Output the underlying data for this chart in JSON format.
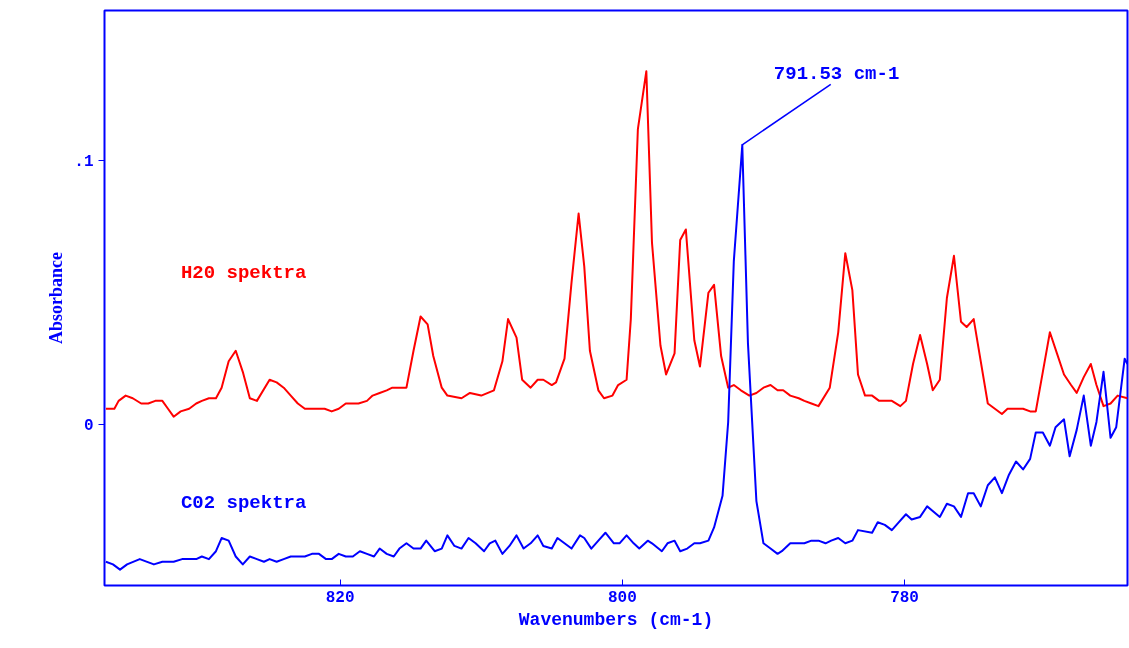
{
  "chart_data": {
    "type": "line",
    "xlabel": "Wavenumbers (cm-1)",
    "ylabel": "Absorbance",
    "xlim": [
      836.7,
      764.2
    ],
    "ylim": [
      -0.061,
      0.157
    ],
    "xticks": [
      820,
      800,
      780
    ],
    "yticks": [
      {
        "value": 0.1,
        "label": ".1"
      },
      0
    ],
    "grid": false,
    "marker": "none",
    "line_style": "solid",
    "annotations": [
      {
        "text": "791.53 cm-1",
        "x": 791.53,
        "y": 0.106
      }
    ],
    "series": [
      {
        "name": "H20 spektra",
        "color": "#ff0000",
        "x": [
          836.6,
          836.0,
          835.7,
          835.2,
          834.7,
          834.1,
          833.6,
          833.1,
          832.6,
          832.2,
          831.8,
          831.3,
          830.7,
          830.2,
          829.8,
          829.3,
          828.8,
          828.4,
          827.9,
          827.4,
          826.9,
          826.4,
          825.9,
          825.0,
          824.5,
          824.0,
          823.5,
          823.0,
          822.5,
          822.0,
          821.6,
          821.1,
          820.6,
          820.1,
          819.6,
          819.2,
          818.7,
          818.1,
          817.7,
          817.2,
          816.7,
          816.3,
          815.3,
          814.8,
          814.3,
          813.8,
          813.4,
          812.8,
          812.4,
          811.4,
          810.8,
          810.0,
          809.1,
          808.5,
          808.1,
          807.5,
          807.1,
          806.5,
          806.0,
          805.6,
          805.0,
          804.7,
          804.1,
          803.6,
          803.1,
          802.7,
          802.3,
          801.7,
          801.3,
          800.7,
          800.3,
          799.7,
          799.4,
          798.9,
          798.3,
          797.9,
          797.3,
          796.9,
          796.3,
          795.9,
          795.5,
          794.9,
          794.5,
          793.9,
          793.5,
          793.0,
          792.5,
          792.1,
          791.6,
          791.0,
          790.5,
          790.0,
          789.5,
          789.0,
          788.6,
          788.1,
          787.5,
          787.1,
          786.6,
          786.1,
          785.3,
          784.7,
          784.2,
          783.7,
          783.3,
          782.8,
          782.3,
          781.8,
          780.9,
          780.3,
          779.9,
          779.4,
          778.9,
          778.4,
          778.0,
          777.5,
          777.0,
          776.5,
          776.0,
          775.6,
          775.1,
          774.6,
          774.1,
          773.6,
          773.1,
          772.7,
          772.1,
          771.6,
          771.1,
          770.7,
          770.2,
          769.7,
          769.2,
          768.7,
          768.2,
          767.8,
          767.3,
          766.8,
          766.4,
          765.9,
          765.4,
          764.9,
          764.2
        ],
        "values": [
          0.006,
          0.006,
          0.009,
          0.011,
          0.01,
          0.008,
          0.008,
          0.009,
          0.009,
          0.006,
          0.003,
          0.005,
          0.006,
          0.008,
          0.009,
          0.01,
          0.01,
          0.014,
          0.024,
          0.028,
          0.02,
          0.01,
          0.009,
          0.017,
          0.016,
          0.014,
          0.011,
          0.008,
          0.006,
          0.006,
          0.006,
          0.006,
          0.005,
          0.006,
          0.008,
          0.008,
          0.008,
          0.009,
          0.011,
          0.012,
          0.013,
          0.014,
          0.014,
          0.028,
          0.041,
          0.038,
          0.026,
          0.014,
          0.011,
          0.01,
          0.012,
          0.011,
          0.013,
          0.024,
          0.04,
          0.033,
          0.017,
          0.014,
          0.017,
          0.017,
          0.015,
          0.016,
          0.025,
          0.054,
          0.08,
          0.06,
          0.028,
          0.013,
          0.01,
          0.011,
          0.015,
          0.017,
          0.04,
          0.112,
          0.134,
          0.069,
          0.03,
          0.019,
          0.027,
          0.07,
          0.074,
          0.032,
          0.022,
          0.05,
          0.053,
          0.026,
          0.014,
          0.015,
          0.013,
          0.011,
          0.012,
          0.014,
          0.015,
          0.013,
          0.013,
          0.011,
          0.01,
          0.009,
          0.008,
          0.007,
          0.014,
          0.035,
          0.065,
          0.051,
          0.019,
          0.011,
          0.011,
          0.009,
          0.009,
          0.007,
          0.009,
          0.023,
          0.034,
          0.023,
          0.013,
          0.017,
          0.048,
          0.064,
          0.039,
          0.037,
          0.04,
          0.024,
          0.008,
          0.006,
          0.004,
          0.006,
          0.006,
          0.006,
          0.005,
          0.005,
          0.02,
          0.035,
          0.027,
          0.019,
          0.015,
          0.012,
          0.018,
          0.023,
          0.015,
          0.007,
          0.008,
          0.011,
          0.01
        ]
      },
      {
        "name": "C02 spektra",
        "color": "#0000ff",
        "x": [
          836.6,
          836.1,
          835.6,
          835.1,
          834.2,
          833.2,
          832.6,
          831.8,
          831.2,
          830.2,
          829.8,
          829.3,
          828.8,
          828.4,
          827.9,
          827.4,
          826.9,
          826.4,
          825.9,
          825.4,
          825.0,
          824.5,
          824.0,
          823.5,
          823.0,
          822.5,
          822.0,
          821.5,
          821.0,
          820.6,
          820.1,
          819.6,
          819.1,
          818.6,
          818.1,
          817.6,
          817.2,
          816.7,
          816.2,
          815.8,
          815.3,
          814.8,
          814.3,
          813.9,
          813.3,
          812.8,
          812.4,
          811.9,
          811.4,
          810.9,
          810.4,
          809.8,
          809.4,
          809.0,
          808.5,
          808.0,
          807.5,
          807.0,
          806.5,
          806.0,
          805.6,
          805.0,
          804.6,
          804.1,
          803.6,
          803.0,
          802.7,
          802.2,
          801.7,
          801.2,
          800.6,
          800.2,
          799.7,
          799.2,
          798.8,
          798.2,
          797.9,
          797.2,
          796.8,
          796.3,
          795.9,
          795.4,
          794.9,
          794.5,
          793.9,
          793.5,
          792.9,
          792.5,
          792.1,
          791.5,
          791.1,
          790.5,
          790.0,
          789.5,
          789.0,
          788.7,
          788.1,
          787.6,
          787.1,
          786.6,
          786.1,
          785.6,
          785.2,
          784.7,
          784.2,
          783.7,
          783.3,
          782.3,
          781.9,
          781.4,
          780.9,
          780.4,
          779.9,
          779.5,
          778.9,
          778.4,
          777.5,
          777.0,
          776.5,
          776.0,
          775.5,
          775.1,
          774.6,
          774.1,
          773.6,
          773.1,
          772.6,
          772.1,
          771.6,
          771.1,
          770.7,
          770.2,
          769.7,
          769.3,
          768.7,
          768.3,
          767.8,
          767.3,
          766.8,
          766.4,
          765.9,
          765.4,
          765.0,
          764.4,
          764.2
        ],
        "values": [
          -0.052,
          -0.053,
          -0.055,
          -0.053,
          -0.051,
          -0.053,
          -0.052,
          -0.052,
          -0.051,
          -0.051,
          -0.05,
          -0.051,
          -0.048,
          -0.043,
          -0.044,
          -0.05,
          -0.053,
          -0.05,
          -0.051,
          -0.052,
          -0.051,
          -0.052,
          -0.051,
          -0.05,
          -0.05,
          -0.05,
          -0.049,
          -0.049,
          -0.051,
          -0.051,
          -0.049,
          -0.05,
          -0.05,
          -0.048,
          -0.049,
          -0.05,
          -0.047,
          -0.049,
          -0.05,
          -0.047,
          -0.045,
          -0.047,
          -0.047,
          -0.044,
          -0.048,
          -0.047,
          -0.042,
          -0.046,
          -0.047,
          -0.043,
          -0.045,
          -0.048,
          -0.045,
          -0.044,
          -0.049,
          -0.046,
          -0.042,
          -0.047,
          -0.045,
          -0.042,
          -0.046,
          -0.047,
          -0.043,
          -0.045,
          -0.047,
          -0.042,
          -0.043,
          -0.047,
          -0.044,
          -0.041,
          -0.045,
          -0.045,
          -0.042,
          -0.045,
          -0.047,
          -0.044,
          -0.045,
          -0.048,
          -0.045,
          -0.044,
          -0.048,
          -0.047,
          -0.045,
          -0.045,
          -0.044,
          -0.039,
          -0.027,
          0.001,
          0.062,
          0.106,
          0.031,
          -0.029,
          -0.045,
          -0.047,
          -0.049,
          -0.048,
          -0.045,
          -0.045,
          -0.045,
          -0.044,
          -0.044,
          -0.045,
          -0.044,
          -0.043,
          -0.045,
          -0.044,
          -0.04,
          -0.041,
          -0.037,
          -0.038,
          -0.04,
          -0.037,
          -0.034,
          -0.036,
          -0.035,
          -0.031,
          -0.035,
          -0.03,
          -0.031,
          -0.035,
          -0.026,
          -0.026,
          -0.031,
          -0.023,
          -0.02,
          -0.026,
          -0.019,
          -0.014,
          -0.017,
          -0.013,
          -0.003,
          -0.003,
          -0.008,
          -0.001,
          0.002,
          -0.012,
          -0.002,
          0.011,
          -0.008,
          0.001,
          0.02,
          -0.005,
          -0.001,
          0.025,
          0.023
        ]
      }
    ]
  }
}
